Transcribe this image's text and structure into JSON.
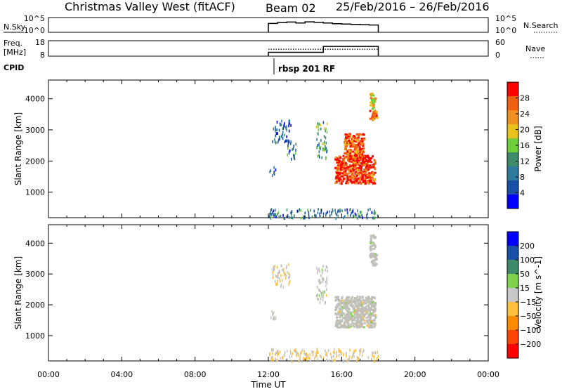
{
  "header": {
    "title": "Christmas Valley West (fitACF)",
    "beam": "Beam 02",
    "date_range": "25/Feb/2016 – 26/Feb/2016"
  },
  "strip_panels": {
    "nsky": {
      "label": "N.Sky",
      "left_ticks": [
        "10^5",
        "10^0"
      ],
      "right_ticks": [
        "10^5",
        "10^0"
      ],
      "right_label": "N.Search"
    },
    "freq": {
      "label_line1": "Freq.",
      "label_line2": "[MHz]",
      "left_ticks": [
        "18",
        "8"
      ],
      "right_ticks": [
        "60",
        "0"
      ],
      "right_label": "Nave"
    },
    "cpid": {
      "label": "CPID",
      "program": "rbsp 201 RF"
    }
  },
  "colors": {
    "power_scale": [
      "#0000ff",
      "#1a4fa8",
      "#2e7a9e",
      "#3e8a6a",
      "#6fcf3a",
      "#e8c21a",
      "#f09020",
      "#f06010",
      "#ff0000"
    ],
    "velocity_scale": [
      "#ff0000",
      "#ff4500",
      "#ff8c00",
      "#ffbf3f",
      "#c8c8c8",
      "#7fd34a",
      "#3e8a6a",
      "#1a4fa8",
      "#0000ff"
    ],
    "ground_scatter": "#c0c0b8"
  },
  "chart_data": [
    {
      "type": "heatmap",
      "panel": "power",
      "ylabel": "Slant Range [km]",
      "ylim": [
        180,
        4600
      ],
      "yticks": [
        1000,
        2000,
        3000,
        4000
      ],
      "xlabel": "Time UT",
      "xticks": [
        "00:00",
        "04:00",
        "08:00",
        "12:00",
        "16:00",
        "20:00",
        "00:00"
      ],
      "xlim_hours": [
        0,
        24
      ],
      "colorbar": {
        "label": "Power [dB]",
        "ticks": [
          "28",
          "24",
          "20",
          "16",
          "12",
          "8",
          "4"
        ],
        "range": [
          0,
          32
        ]
      },
      "regions": [
        {
          "t": [
            12.0,
            12.4
          ],
          "range": [
            1550,
            1850
          ],
          "value": 6
        },
        {
          "t": [
            12.2,
            13.2
          ],
          "range": [
            2600,
            3350
          ],
          "value": 7
        },
        {
          "t": [
            13.0,
            13.5
          ],
          "range": [
            2100,
            2700
          ],
          "value": 10
        },
        {
          "t": [
            14.6,
            15.2
          ],
          "range": [
            2100,
            3300
          ],
          "value": 12
        },
        {
          "t": [
            15.6,
            17.8
          ],
          "range": [
            1300,
            2200
          ],
          "value": 28
        },
        {
          "t": [
            16.1,
            17.2
          ],
          "range": [
            2100,
            2900
          ],
          "value": 26
        },
        {
          "t": [
            17.5,
            17.9
          ],
          "range": [
            3350,
            3650
          ],
          "value": 26
        },
        {
          "t": [
            17.5,
            17.8
          ],
          "range": [
            3700,
            4200
          ],
          "value": 21
        },
        {
          "t": [
            12.0,
            18.0
          ],
          "range": [
            200,
            500
          ],
          "value": 9
        }
      ]
    },
    {
      "type": "heatmap",
      "panel": "velocity",
      "ylabel": "Slant Range [km]",
      "ylim": [
        180,
        4600
      ],
      "yticks": [
        1000,
        2000,
        3000,
        4000
      ],
      "xlabel": "Time UT",
      "xticks": [
        "00:00",
        "04:00",
        "08:00",
        "12:00",
        "16:00",
        "20:00",
        "00:00"
      ],
      "xlim_hours": [
        0,
        24
      ],
      "colorbar": {
        "label": "Velocity [m s^-1]",
        "ticks": [
          "200",
          "100",
          "50",
          "15",
          "−15",
          "−50",
          "−100",
          "−200"
        ],
        "range": [
          -300,
          300
        ]
      },
      "regions": [
        {
          "t": [
            12.0,
            12.4
          ],
          "range": [
            1550,
            1850
          ],
          "value": 0
        },
        {
          "t": [
            12.2,
            13.2
          ],
          "range": [
            2600,
            3350
          ],
          "value": -30
        },
        {
          "t": [
            14.6,
            15.2
          ],
          "range": [
            2100,
            3300
          ],
          "value": 0
        },
        {
          "t": [
            15.6,
            17.8
          ],
          "range": [
            1300,
            2300
          ],
          "value": 0
        },
        {
          "t": [
            17.5,
            17.9
          ],
          "range": [
            3300,
            3700
          ],
          "value": 0
        },
        {
          "t": [
            17.5,
            17.8
          ],
          "range": [
            3800,
            4300
          ],
          "value": 0
        },
        {
          "t": [
            12.0,
            18.0
          ],
          "range": [
            200,
            600
          ],
          "value": -40
        }
      ]
    },
    {
      "type": "line",
      "panel": "nsky",
      "x_hours": [
        12.0,
        12.5,
        13.0,
        13.5,
        14.0,
        14.5,
        15.0,
        15.5,
        16.0,
        16.5,
        17.0,
        17.5,
        18.0
      ],
      "values": [
        1000,
        2000,
        3000,
        1500,
        3500,
        2500,
        1500,
        800,
        600,
        500,
        400,
        300,
        300
      ]
    },
    {
      "type": "line",
      "panel": "freq",
      "x_hours": [
        12.0,
        15.0,
        15.0,
        18.0
      ],
      "values": [
        10.5,
        10.5,
        14.3,
        14.3
      ],
      "nave": [
        27,
        27,
        27,
        27
      ]
    }
  ]
}
